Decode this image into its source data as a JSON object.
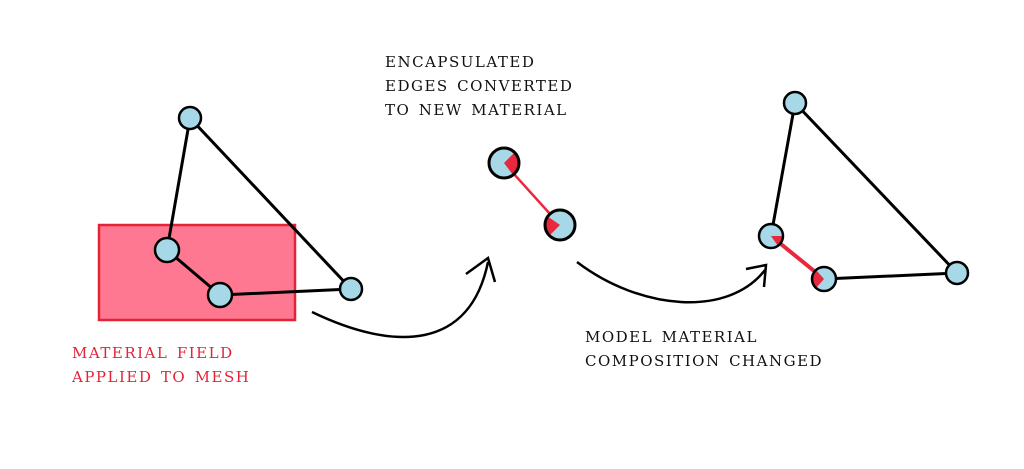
{
  "diagram": {
    "title_step1": [
      "MATERIAL FIELD",
      "APPLIED TO MESH"
    ],
    "title_step2": [
      "ENCAPSULATED",
      "EDGES CONVERTED",
      "TO NEW MATERIAL"
    ],
    "title_step3": [
      "MODEL MATERIAL",
      "COMPOSITION CHANGED"
    ]
  },
  "colors": {
    "node_fill": "#a6d8e8",
    "edge_default": "#000000",
    "edge_converted": "#e8283c",
    "material_field_fill": "#ff7891",
    "material_field_border": "#e32437",
    "caption_red": "#e32437",
    "caption_dark": "#111111"
  },
  "mesh_before": {
    "nodes": [
      "top",
      "field-left",
      "field-bottom",
      "right"
    ],
    "edges": [
      [
        "top",
        "right"
      ],
      [
        "top",
        "field-left"
      ],
      [
        "field-left",
        "field-bottom"
      ],
      [
        "field-bottom",
        "right"
      ]
    ]
  },
  "mesh_after": {
    "nodes": [
      "top",
      "converted-a",
      "converted-b",
      "right"
    ],
    "edges": [
      [
        "top",
        "right"
      ],
      [
        "top",
        "converted-a"
      ],
      [
        "converted-b",
        "right"
      ]
    ],
    "converted_edges": [
      [
        "converted-a",
        "converted-b"
      ]
    ]
  }
}
